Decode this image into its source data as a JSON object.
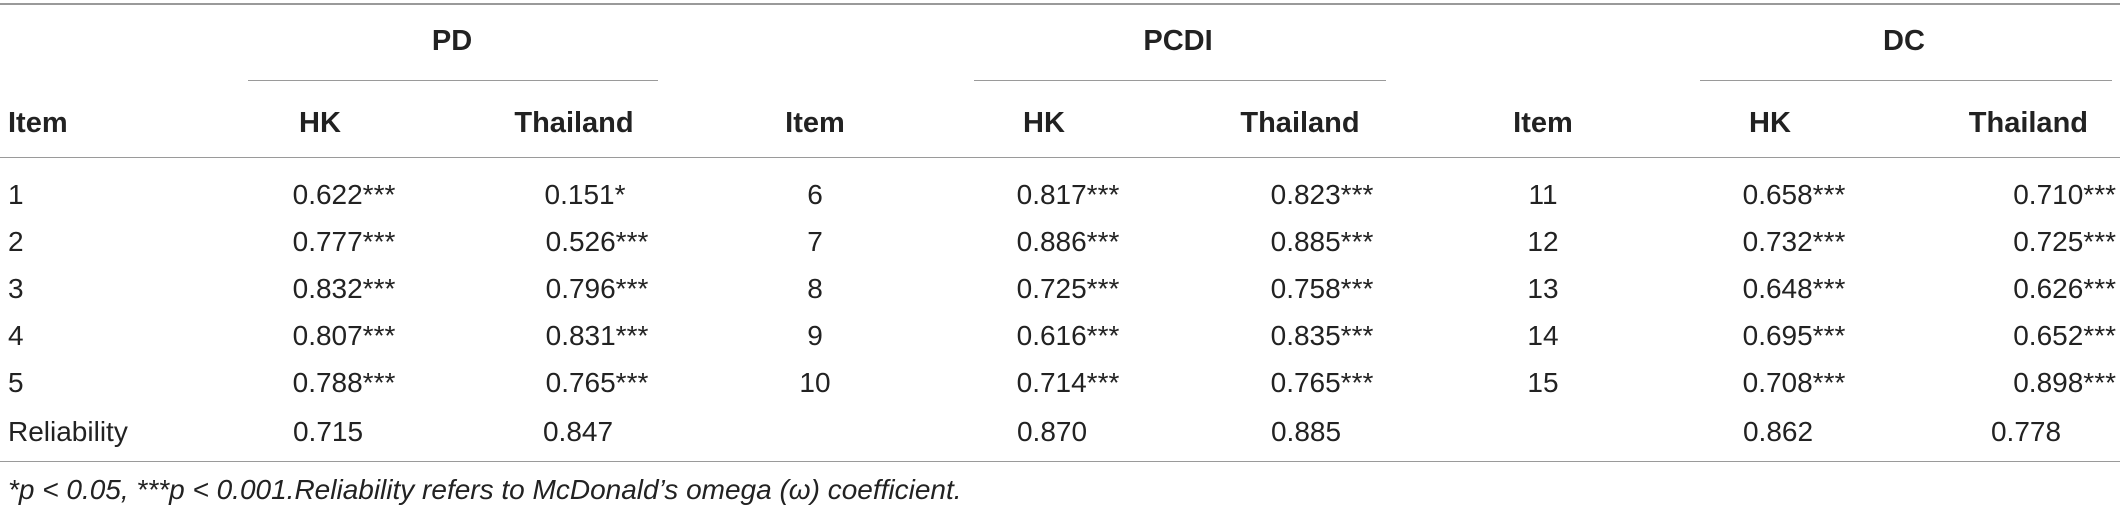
{
  "table": {
    "groups": [
      "PD",
      "PCDI",
      "DC"
    ],
    "subheaders": [
      "HK",
      "Thailand"
    ],
    "item_header": "Item",
    "blocks": [
      {
        "items": [
          "1",
          "2",
          "3",
          "4",
          "5"
        ],
        "hk": [
          "0.622***",
          "0.777***",
          "0.832***",
          "0.807***",
          "0.788***"
        ],
        "thailand": [
          "0.151*",
          "0.526***",
          "0.796***",
          "0.831***",
          "0.765***"
        ],
        "reliability_label": "Reliability",
        "reliability": {
          "hk": "0.715",
          "thailand": "0.847"
        }
      },
      {
        "items": [
          "6",
          "7",
          "8",
          "9",
          "10"
        ],
        "hk": [
          "0.817***",
          "0.886***",
          "0.725***",
          "0.616***",
          "0.714***"
        ],
        "thailand": [
          "0.823***",
          "0.885***",
          "0.758***",
          "0.835***",
          "0.765***"
        ],
        "reliability": {
          "hk": "0.870",
          "thailand": "0.885"
        }
      },
      {
        "items": [
          "11",
          "12",
          "13",
          "14",
          "15"
        ],
        "hk": [
          "0.658***",
          "0.732***",
          "0.648***",
          "0.695***",
          "0.708***"
        ],
        "thailand": [
          "0.710***",
          "0.725***",
          "0.626***",
          "0.652***",
          "0.898***"
        ],
        "reliability": {
          "hk": "0.862",
          "thailand": "0.778"
        }
      }
    ],
    "footnote": "*p < 0.05, ***p < 0.001.Reliability refers to McDonald’s omega (ω) coefficient."
  }
}
